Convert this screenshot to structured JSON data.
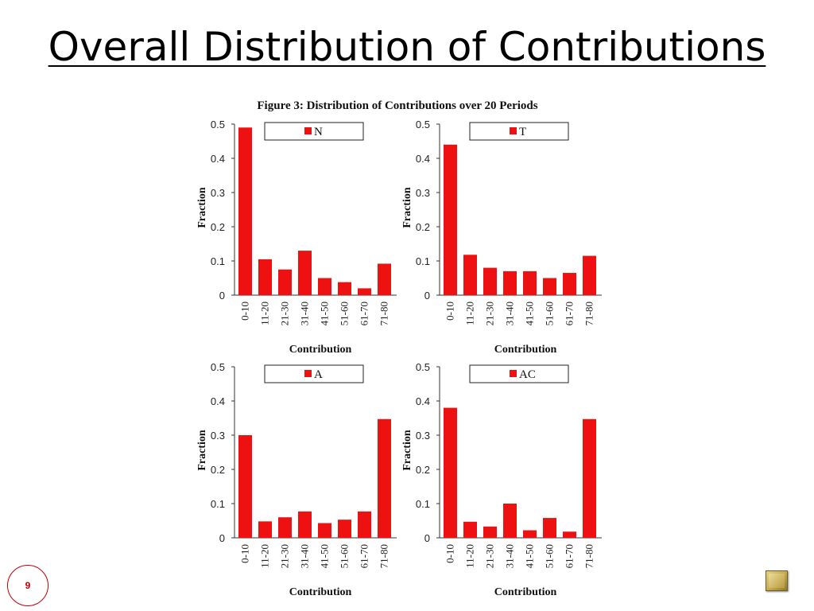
{
  "slide": {
    "title": "Overall Distribution of Contributions",
    "page_number": "9",
    "nav_icon": "next-slide-icon"
  },
  "figure": {
    "caption": "Figure 3: Distribution of Contributions over 20 Periods"
  },
  "colors": {
    "bar": "#ee1111",
    "axis": "#333333",
    "title_underline": "#000000",
    "page_number": "#c00000"
  },
  "chart_data": [
    {
      "type": "bar",
      "legend": "N",
      "legend_position": "top",
      "xlabel": "Contribution",
      "ylabel": "Fraction",
      "ylim": [
        0,
        0.5
      ],
      "yticks": [
        "0",
        "0.1",
        "0.2",
        "0.3",
        "0.4",
        "0.5"
      ],
      "grid": false,
      "categories": [
        "0-10",
        "11-20",
        "21-30",
        "31-40",
        "41-50",
        "51-60",
        "61-70",
        "71-80"
      ],
      "values": [
        0.49,
        0.105,
        0.075,
        0.13,
        0.05,
        0.038,
        0.02,
        0.092
      ]
    },
    {
      "type": "bar",
      "legend": "T",
      "legend_position": "top",
      "xlabel": "Contribution",
      "ylabel": "Fraction",
      "ylim": [
        0,
        0.5
      ],
      "yticks": [
        "0",
        "0.1",
        "0.2",
        "0.3",
        "0.4",
        "0.5"
      ],
      "grid": false,
      "categories": [
        "0-10",
        "11-20",
        "21-30",
        "31-40",
        "41-50",
        "51-60",
        "61-70",
        "71-80"
      ],
      "values": [
        0.44,
        0.118,
        0.08,
        0.07,
        0.07,
        0.05,
        0.065,
        0.115
      ]
    },
    {
      "type": "bar",
      "legend": "A",
      "legend_position": "top",
      "xlabel": "Contribution",
      "ylabel": "Fraction",
      "ylim": [
        0,
        0.5
      ],
      "yticks": [
        "0",
        "0.1",
        "0.2",
        "0.3",
        "0.4",
        "0.5"
      ],
      "grid": false,
      "categories": [
        "0-10",
        "11-20",
        "21-30",
        "31-40",
        "41-50",
        "51-60",
        "61-70",
        "71-80"
      ],
      "values": [
        0.3,
        0.048,
        0.06,
        0.077,
        0.043,
        0.053,
        0.077,
        0.347
      ]
    },
    {
      "type": "bar",
      "legend": "AC",
      "legend_position": "top",
      "xlabel": "Contribution",
      "ylabel": "Fraction",
      "ylim": [
        0,
        0.5
      ],
      "yticks": [
        "0",
        "0.1",
        "0.2",
        "0.3",
        "0.4",
        "0.5"
      ],
      "grid": false,
      "categories": [
        "0-10",
        "11-20",
        "21-30",
        "31-40",
        "41-50",
        "51-60",
        "61-70",
        "71-80"
      ],
      "values": [
        0.38,
        0.047,
        0.033,
        0.1,
        0.022,
        0.058,
        0.018,
        0.347
      ]
    }
  ]
}
